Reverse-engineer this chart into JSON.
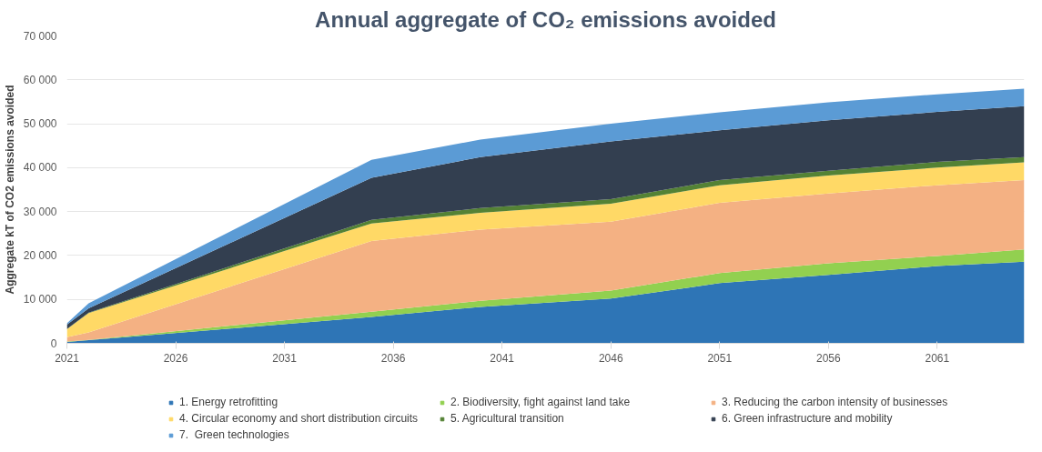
{
  "chart_data": {
    "type": "area",
    "stacked": true,
    "title": "Annual aggregate of CO₂ emissions avoided",
    "ylabel": "Aggregate kT of CO2 emissions avoided",
    "x": [
      2021,
      2022,
      2035,
      2040,
      2046,
      2051,
      2056,
      2061,
      2065
    ],
    "xlim": [
      2021,
      2065
    ],
    "xticks": [
      2021,
      2026,
      2031,
      2036,
      2041,
      2046,
      2051,
      2056,
      2061
    ],
    "ylim": [
      0,
      70000
    ],
    "yticks": [
      0,
      {
        "value": 10000,
        "label": "10 000"
      },
      {
        "value": 20000,
        "label": "20 000"
      },
      {
        "value": 30000,
        "label": "30 000"
      },
      {
        "value": 40000,
        "label": "40 000"
      },
      {
        "value": 50000,
        "label": "50 000"
      },
      {
        "value": 60000,
        "label": "60 000"
      },
      {
        "value": 70000,
        "label": "70 000"
      }
    ],
    "grid": "y",
    "legend": "bottom",
    "series": [
      {
        "name": "1. Energy retrofitting",
        "color": "#2e75b6",
        "values": [
          300,
          700,
          6000,
          8300,
          10200,
          13700,
          15600,
          17600,
          18600
        ]
      },
      {
        "name": "2. Biodiversity, fight against land take",
        "color": "#92d050",
        "values": [
          100,
          100,
          1200,
          1400,
          1800,
          2300,
          2600,
          2300,
          2800
        ]
      },
      {
        "name": "3. Reducing the carbon intensity of businesses",
        "color": "#f4b183",
        "values": [
          1000,
          1700,
          16100,
          16200,
          15700,
          16000,
          15900,
          16100,
          15800
        ]
      },
      {
        "name": "4. Circular economy and short distribution circuits",
        "color": "#ffd966",
        "values": [
          1800,
          4400,
          4000,
          3800,
          4100,
          4000,
          4100,
          4000,
          4000
        ]
      },
      {
        "name": "5. Agricultural transition",
        "color": "#548235",
        "values": [
          50,
          100,
          800,
          1100,
          1000,
          1200,
          1100,
          1300,
          1200
        ]
      },
      {
        "name": "6. Green infrastructure and mobility",
        "color": "#333f50",
        "values": [
          1000,
          950,
          9600,
          11600,
          13200,
          11300,
          11500,
          11400,
          11600
        ]
      },
      {
        "name": "7.  Green technologies",
        "color": "#5b9bd5",
        "values": [
          300,
          1150,
          4100,
          4000,
          4000,
          4100,
          4100,
          4000,
          4000
        ]
      }
    ]
  }
}
